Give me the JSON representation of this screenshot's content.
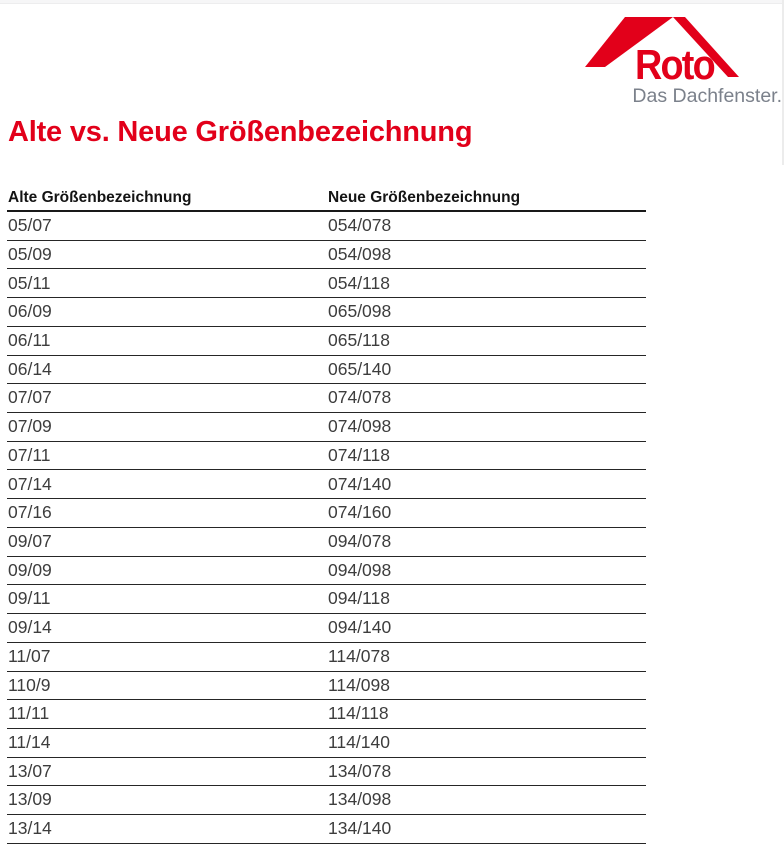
{
  "logo": {
    "brand": "Roto",
    "tagline": "Das Dachfenster."
  },
  "title": "Alte vs. Neue Größenbezeichnung",
  "table": {
    "headers": {
      "old": "Alte Größenbezeichnung",
      "new": "Neue Größenbezeichnung"
    },
    "rows": [
      {
        "old": "05/07",
        "new": "054/078"
      },
      {
        "old": "05/09",
        "new": "054/098"
      },
      {
        "old": "05/11",
        "new": "054/118"
      },
      {
        "old": "06/09",
        "new": "065/098"
      },
      {
        "old": "06/11",
        "new": "065/118"
      },
      {
        "old": "06/14",
        "new": "065/140"
      },
      {
        "old": "07/07",
        "new": "074/078"
      },
      {
        "old": "07/09",
        "new": "074/098"
      },
      {
        "old": "07/11",
        "new": "074/118"
      },
      {
        "old": "07/14",
        "new": "074/140"
      },
      {
        "old": "07/16",
        "new": "074/160"
      },
      {
        "old": "09/07",
        "new": "094/078"
      },
      {
        "old": "09/09",
        "new": "094/098"
      },
      {
        "old": "09/11",
        "new": "094/118"
      },
      {
        "old": "09/14",
        "new": "094/140"
      },
      {
        "old": "11/07",
        "new": "114/078"
      },
      {
        "old": "110/9",
        "new": "114/098"
      },
      {
        "old": "11/11",
        "new": "114/118"
      },
      {
        "old": "11/14",
        "new": "114/140"
      },
      {
        "old": "13/07",
        "new": "134/078"
      },
      {
        "old": "13/09",
        "new": "134/098"
      },
      {
        "old": "13/14",
        "new": "134/140"
      }
    ]
  },
  "colors": {
    "brand_red": "#e2001a",
    "tagline_gray": "#7b818b",
    "table_text": "#3d3d3d"
  }
}
